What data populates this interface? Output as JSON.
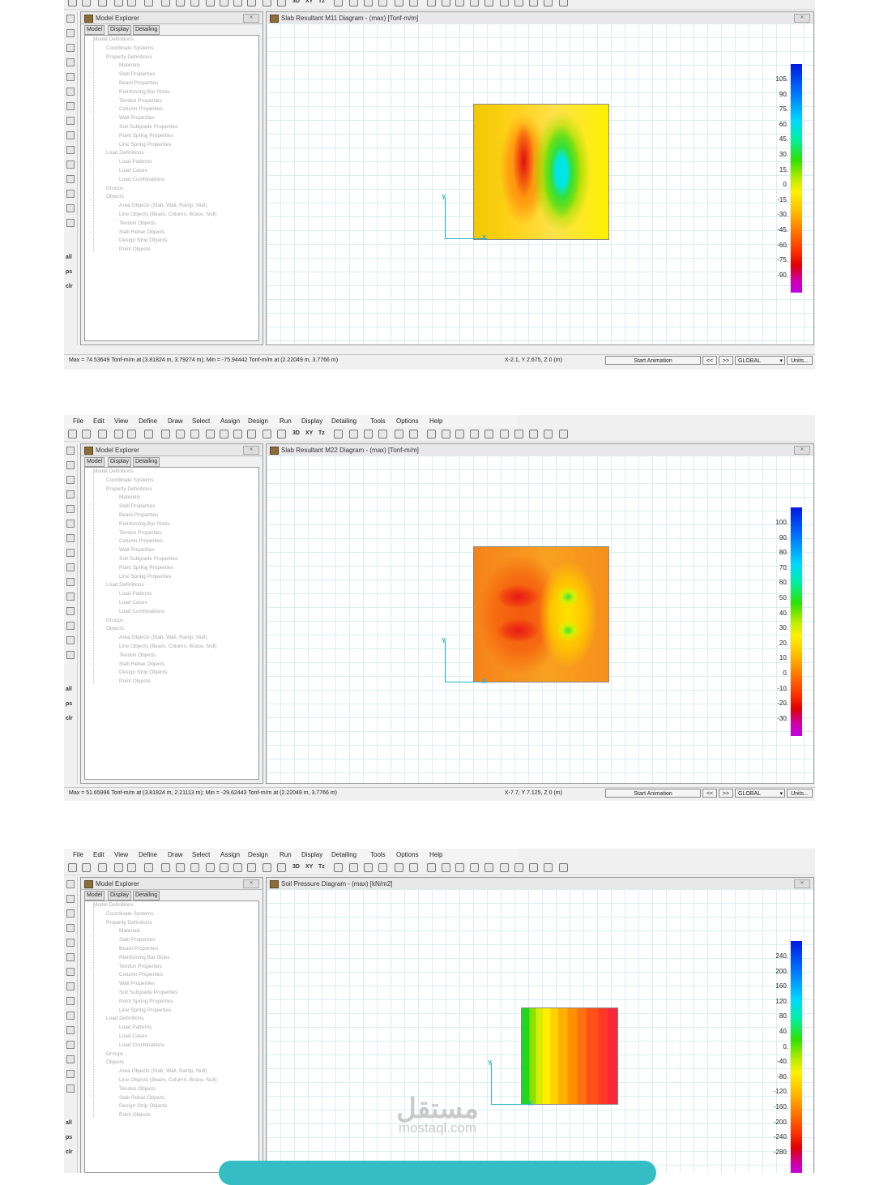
{
  "menu": [
    "File",
    "Edit",
    "View",
    "Define",
    "Draw",
    "Select",
    "Assign",
    "Design",
    "Run",
    "Display",
    "Detailing",
    "Tools",
    "Options",
    "Help"
  ],
  "toolbar": {
    "view_3d": "3D",
    "view_xy": "XY",
    "view_tz": "Tz"
  },
  "lefttools": {
    "all": "all",
    "ps": "ps",
    "clr": "clr"
  },
  "explorer": {
    "title": "Model Explorer",
    "tabs": [
      "Model",
      "Display",
      "Detailing"
    ],
    "tree": [
      "Model Definitions",
      "Coordinate Systems",
      "Property Definitions",
      "Materials",
      "Slab Properties",
      "Beam Properties",
      "Reinforcing Bar Sizes",
      "Tendon Properties",
      "Column Properties",
      "Wall Properties",
      "Soil Subgrade Properties",
      "Point Spring Properties",
      "Line Spring Properties",
      "Load Definitions",
      "Load Patterns",
      "Load Cases",
      "Load Combinations",
      "Groups",
      "Objects",
      "Area Objects (Slab, Wall, Ramp, Null)",
      "Line Objects (Beam, Column, Brace, Null)",
      "Tendon Objects",
      "Slab Rebar Objects",
      "Design Strip Objects",
      "Point Objects"
    ]
  },
  "panels": [
    {
      "title": "Slab Resultant M11 Diagram - (max) [Tonf-m/m]",
      "colorbar_labels": [
        "105.",
        "90.",
        "75.",
        "60.",
        "45.",
        "30.",
        "15.",
        "0.",
        "-15.",
        "-30.",
        "-45.",
        "-60.",
        "-75.",
        "-90."
      ],
      "status_left": "Max = 74.53649 Tonf-m/m at (3.81824 m, 3.79274 m);  Min = -75.94442 Tonf-m/m at (2.22049 m, 3.7766 m)",
      "status_coords": "X-2.1,  Y 2.675,  Z 0  (m)"
    },
    {
      "title": "Slab Resultant M22 Diagram - (max) [Tonf-m/m]",
      "colorbar_labels": [
        "100.",
        "90.",
        "80.",
        "70.",
        "60.",
        "50.",
        "40.",
        "30.",
        "20.",
        "10.",
        "0.",
        "-10.",
        "-20.",
        "-30."
      ],
      "status_left": "Max = 51.65996 Tonf-m/m at (3.81824 m, 2.21113 m);  Min = -29.62443 Tonf-m/m at (2.22049 m, 3.7766 m)",
      "status_coords": "X-7.7,  Y 7.125,  Z 0  (m)"
    },
    {
      "title": "Soil Pressure Diagram - (max) [kN/m2]",
      "colorbar_labels": [
        "240.",
        "200.",
        "160.",
        "120.",
        "80.",
        "40.",
        "0.",
        "-40.",
        "-80.",
        "-120.",
        "-160.",
        "-200.",
        "-240.",
        "-280."
      ]
    }
  ],
  "status_controls": {
    "animation": "Start Animation",
    "prev": "<<",
    "next": ">>",
    "coord_system": "GLOBAL",
    "units": "Units..."
  },
  "axis": {
    "y": "Y",
    "x": "X"
  },
  "watermark": {
    "arabic": "مستقل",
    "latin": "mostaql.com"
  }
}
